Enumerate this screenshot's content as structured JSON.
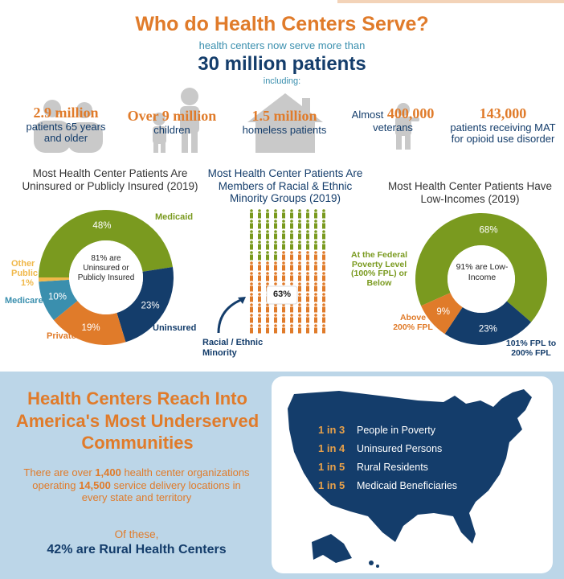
{
  "header": {
    "title": "Who do Health Centers Serve?",
    "subtitle": "health centers now serve more than",
    "count": "30 million patients",
    "including": "including:"
  },
  "stats": [
    {
      "num": "2.9 million",
      "label": "patients 65 years and older"
    },
    {
      "num": "Over 9 million",
      "label": "children"
    },
    {
      "num": "1.5 million",
      "label": "homeless patients"
    },
    {
      "prefix": "Almost",
      "num": "400,000",
      "label": "veterans"
    },
    {
      "num": "143,000",
      "label": "patients receiving MAT for opioid use disorder"
    }
  ],
  "insurance_chart": {
    "title": "Most Health Center Patients Are Uninsured or Publicly Insured (2019)",
    "center_text": "81% are Uninsured or Publicly Insured",
    "segment_labels": {
      "medicaid": "Medicaid",
      "other_public": "Other Public",
      "other_public_pct": "1%",
      "medicare": "Medicare",
      "private": "Private",
      "uninsured": "Uninsured"
    }
  },
  "minority_chart": {
    "title": "Most Health Center Patients Are Members of Racial & Ethnic Minority Groups (2019)",
    "percent_label": "63%",
    "annotation": "Racial / Ethnic Minority",
    "total_figures": 120,
    "highlighted_figures": 76
  },
  "income_chart": {
    "title": "Most Health Center Patients Have Low-Incomes (2019)",
    "center_text": "91% are Low-Income",
    "segment_labels": {
      "fpl": "At the Federal Poverty Level (100% FPL) or Below",
      "above": "Above 200% FPL",
      "mid": "101% FPL to 200% FPL"
    }
  },
  "chart_data": [
    {
      "type": "pie",
      "title": "Most Health Center Patients Are Uninsured or Publicly Insured (2019)",
      "categories": [
        "Medicaid",
        "Uninsured",
        "Private",
        "Medicare",
        "Other Public"
      ],
      "values": [
        48,
        23,
        19,
        10,
        1
      ],
      "labels": [
        "48%",
        "23%",
        "19%",
        "10%",
        "1%"
      ],
      "colors": [
        "#7a9a1f",
        "#143d6b",
        "#e07b2a",
        "#3a8fae",
        "#f0b84a"
      ]
    },
    {
      "type": "pie",
      "title": "Most Health Center Patients Have Low-Incomes (2019)",
      "categories": [
        "At the Federal Poverty Level (100% FPL) or Below",
        "101% FPL to 200% FPL",
        "Above 200% FPL"
      ],
      "values": [
        68,
        23,
        9
      ],
      "labels": [
        "68%",
        "23%",
        "9%"
      ],
      "colors": [
        "#7a9a1f",
        "#143d6b",
        "#e07b2a"
      ]
    }
  ],
  "bottom": {
    "title": "Health Centers Reach Into America's Most Underserved Communities",
    "body_pre": "There are over ",
    "body_num1": "1,400",
    "body_mid": " health center organizations operating ",
    "body_num2": "14,500",
    "body_post": " service delivery locations in every state and territory",
    "of_these": "Of these,",
    "rural": "42% are Rural Health Centers"
  },
  "map_rows": [
    {
      "ratio": "1 in 3",
      "label": "People in Poverty"
    },
    {
      "ratio": "1 in 4",
      "label": "Uninsured Persons"
    },
    {
      "ratio": "1 in 5",
      "label": "Rural Residents"
    },
    {
      "ratio": "1 in 5",
      "label": "Medicaid Beneficiaries"
    }
  ],
  "colors": {
    "orange": "#e07b2a",
    "navy": "#143d6b",
    "green": "#7a9a1f",
    "teal": "#3a8fae",
    "gray": "#c9c9c9",
    "light_blue": "#bcd6e8"
  }
}
